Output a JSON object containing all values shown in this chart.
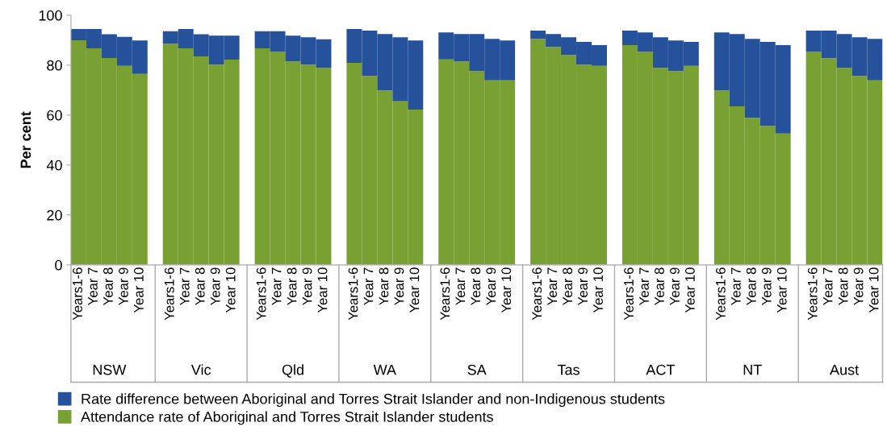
{
  "chart_data": {
    "type": "bar",
    "stacked": true,
    "ylabel": "Per cent",
    "ylim": [
      0,
      100
    ],
    "yticks": [
      0,
      20,
      40,
      60,
      80,
      100
    ],
    "grid": false,
    "legend": "bottom",
    "categories": [
      "Years1-6",
      "Year 7",
      "Year 8",
      "Year 9",
      "Year 10",
      null,
      "Years1-6",
      "Year 7",
      "Year 8",
      "Year 9",
      "Year 10",
      null,
      "Years1-6",
      "Year 7",
      "Year 8",
      "Year 9",
      "Year 10",
      null,
      "Years1-6",
      "Year 7",
      "Year 8",
      "Year 9",
      "Year 10",
      null,
      "Years1-6",
      "Year 7",
      "Year 8",
      "Year 9",
      "Year 10",
      null,
      "Years1-6",
      "Year 7",
      "Year 8",
      "Year 9",
      "Year 10",
      null,
      "Years1-6",
      "Year 7",
      "Year 8",
      "Year 9",
      "Year 10",
      null,
      "Years1-6",
      "Year 7",
      "Year 8",
      "Year 9",
      "Year 10",
      null,
      "Years1-6",
      "Year 7",
      "Year 8",
      "Year 9",
      "Year 10"
    ],
    "annotations": [
      "NSW",
      "Vic",
      "Qld",
      "WA",
      "SA",
      "Tas",
      "ACT",
      "NT",
      "Aust"
    ],
    "series": [
      {
        "name": "Attendance rate of Aboriginal and Torres Strait Islander students",
        "color": "#78a032",
        "values": [
          90.0,
          86.7,
          82.9,
          79.7,
          76.5,
          null,
          88.6,
          86.7,
          83.5,
          80.2,
          82.2,
          null,
          86.7,
          85.4,
          81.5,
          80.2,
          78.9,
          null,
          80.9,
          75.7,
          69.9,
          65.5,
          62.2,
          null,
          82.3,
          81.5,
          77.6,
          73.9,
          73.9,
          null,
          90.5,
          87.3,
          84.1,
          80.2,
          79.7,
          null,
          88.0,
          85.4,
          78.9,
          77.6,
          79.7,
          null,
          69.9,
          63.5,
          58.9,
          55.7,
          52.6,
          null,
          85.4,
          82.8,
          78.9,
          75.7,
          73.9
        ]
      },
      {
        "name": "Rate difference between Aboriginal and Torres Strait Islander and non-Indigenous students",
        "color": "#25529a",
        "values": [
          4.5,
          7.8,
          9.5,
          11.6,
          13.4,
          null,
          5.0,
          7.8,
          8.9,
          11.6,
          9.6,
          null,
          6.9,
          8.2,
          10.3,
          11.0,
          11.5,
          null,
          13.6,
          18.1,
          22.6,
          25.7,
          27.7,
          null,
          10.8,
          11.0,
          14.9,
          16.6,
          16.0,
          null,
          3.3,
          5.2,
          7.1,
          9.1,
          8.3,
          null,
          5.8,
          7.7,
          12.3,
          12.3,
          9.6,
          null,
          23.2,
          29.0,
          31.6,
          33.6,
          35.4,
          null,
          8.4,
          11.0,
          13.6,
          15.5,
          16.6
        ]
      }
    ]
  }
}
